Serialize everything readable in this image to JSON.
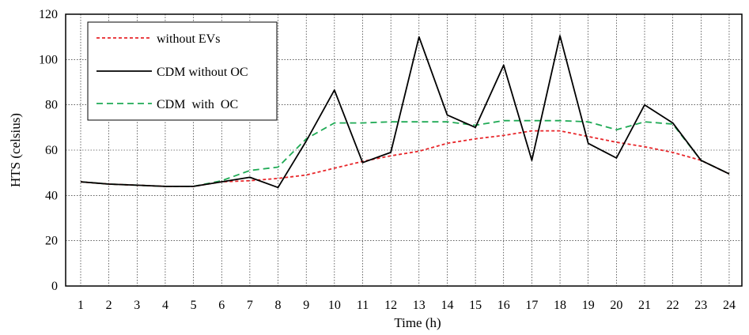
{
  "chart_data": {
    "type": "line",
    "title": "",
    "xlabel": "Time (h)",
    "ylabel": "HTS (celsius)",
    "x": [
      1,
      2,
      3,
      4,
      5,
      6,
      7,
      8,
      9,
      10,
      11,
      12,
      13,
      14,
      15,
      16,
      17,
      18,
      19,
      20,
      21,
      22,
      23,
      24
    ],
    "xlim": [
      1,
      24
    ],
    "ylim": [
      0,
      120
    ],
    "yticks": [
      0,
      20,
      40,
      60,
      80,
      100,
      120
    ],
    "grid": true,
    "legend_position": "top-left",
    "series": [
      {
        "name": "without EVs",
        "color": "#e8262a",
        "style": "dotted",
        "values": [
          46,
          45,
          44.5,
          44,
          44,
          46,
          46.5,
          47.5,
          49,
          52,
          55,
          57.5,
          59.5,
          63,
          65,
          66.5,
          68.5,
          68.5,
          66,
          63.5,
          61.5,
          59,
          55.5,
          49.5
        ]
      },
      {
        "name": "CDM without OC",
        "color": "#000000",
        "style": "solid",
        "values": [
          46,
          45,
          44.5,
          44,
          44,
          46,
          48,
          43.5,
          64,
          86.5,
          54.5,
          59,
          110,
          75.5,
          70,
          97.5,
          55.5,
          110.5,
          63,
          56.5,
          80,
          72,
          55.5,
          49.5
        ]
      },
      {
        "name": "CDM  with  OC",
        "color": "#1faa55",
        "style": "dashed",
        "values": [
          46,
          45,
          44.5,
          44,
          44,
          46.5,
          51,
          52.5,
          65,
          72,
          72,
          72.5,
          72.5,
          72.5,
          71,
          73,
          73,
          73,
          72.5,
          69,
          72.5,
          71.5,
          55.5,
          49.5
        ]
      }
    ]
  }
}
